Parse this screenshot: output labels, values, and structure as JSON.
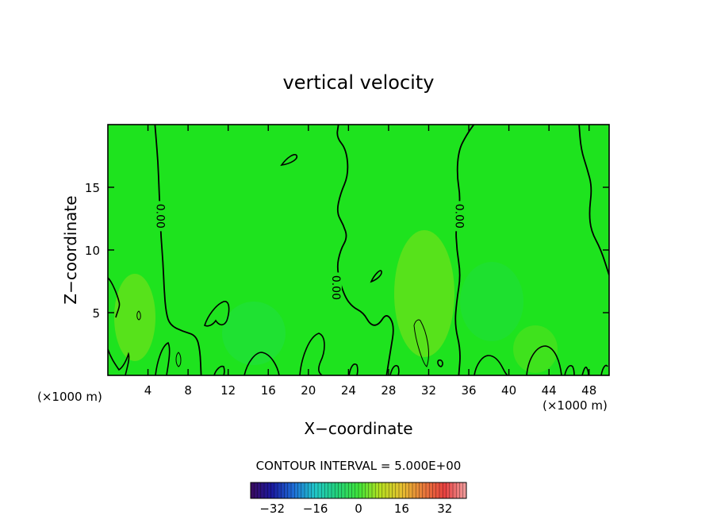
{
  "chart_data": {
    "type": "heatmap",
    "title": "vertical velocity",
    "xlabel": "X−coordinate",
    "ylabel": "Z−coordinate",
    "x_unit_label": "(×1000 m)",
    "z_unit_label": "(×1000 m)",
    "xlim": [
      0,
      50
    ],
    "ylim": [
      0,
      20
    ],
    "x_ticks": [
      4,
      8,
      12,
      16,
      20,
      24,
      28,
      32,
      36,
      40,
      44,
      48
    ],
    "x_tick_labels": [
      "4",
      "8",
      "12",
      "16",
      "20",
      "24",
      "28",
      "32",
      "36",
      "40",
      "44",
      "48"
    ],
    "y_ticks": [
      5,
      10,
      15
    ],
    "y_tick_labels": [
      "5",
      "10",
      "15"
    ],
    "contour_interval_text": "CONTOUR INTERVAL = 5.000E+00",
    "contour_labels": [
      {
        "text": "0.00",
        "x": 5.2,
        "z": 12.7
      },
      {
        "text": "0.00",
        "x": 22.7,
        "z": 7.0
      },
      {
        "text": "0.00",
        "x": 35.0,
        "z": 12.7
      }
    ],
    "zero_contours": [
      {
        "name": "zero-contour-left",
        "points": [
          [
            4.7,
            20
          ],
          [
            4.8,
            19
          ],
          [
            5.0,
            17
          ],
          [
            5.1,
            15
          ],
          [
            5.2,
            13
          ],
          [
            5.3,
            11
          ],
          [
            5.5,
            9
          ],
          [
            5.6,
            7
          ],
          [
            5.8,
            5
          ],
          [
            6.2,
            4
          ],
          [
            7.5,
            3.5
          ],
          [
            8.8,
            3.2
          ],
          [
            9.2,
            2
          ],
          [
            9.3,
            0
          ]
        ]
      },
      {
        "name": "zero-contour-middle",
        "points": [
          [
            23.0,
            20
          ],
          [
            22.8,
            19
          ],
          [
            23.8,
            18
          ],
          [
            24.0,
            16
          ],
          [
            23.2,
            14.5
          ],
          [
            22.8,
            13
          ],
          [
            23.5,
            12
          ],
          [
            23.9,
            11
          ],
          [
            23.2,
            10
          ],
          [
            22.8,
            8.5
          ],
          [
            23.5,
            6.5
          ],
          [
            24.3,
            5.5
          ],
          [
            25.5,
            5
          ],
          [
            26.2,
            4
          ],
          [
            27.0,
            4
          ],
          [
            27.8,
            5
          ],
          [
            28.6,
            4
          ],
          [
            28.2,
            2
          ],
          [
            27.8,
            0
          ]
        ]
      },
      {
        "name": "zero-contour-right",
        "points": [
          [
            36.5,
            20
          ],
          [
            35.8,
            19.2
          ],
          [
            35.0,
            18
          ],
          [
            34.8,
            16
          ],
          [
            35.2,
            14
          ],
          [
            34.7,
            12
          ],
          [
            34.8,
            10
          ],
          [
            35.2,
            8
          ],
          [
            34.8,
            6
          ],
          [
            34.6,
            4
          ],
          [
            35.2,
            2
          ],
          [
            35.0,
            0
          ]
        ]
      },
      {
        "name": "zero-contour-far-right",
        "points": [
          [
            47.0,
            20
          ],
          [
            47.2,
            18
          ],
          [
            47.8,
            16.5
          ],
          [
            48.3,
            15
          ],
          [
            48.0,
            13
          ],
          [
            48.2,
            11.5
          ],
          [
            49.2,
            10
          ],
          [
            50,
            8
          ]
        ]
      }
    ],
    "colorbar": {
      "range": [
        -40,
        40
      ],
      "ticks": [
        -32,
        -16,
        0,
        16,
        32
      ],
      "tick_labels": [
        "−32",
        "−16",
        "0",
        "16",
        "32"
      ],
      "colors": [
        "#3a0a5e",
        "#1a1aa0",
        "#1e6fd8",
        "#20c8c8",
        "#22d27a",
        "#3fe43a",
        "#b6e020",
        "#e6c030",
        "#e87a3a",
        "#e84040",
        "#f0a0a0"
      ]
    },
    "field_color": "#1ee31e",
    "contour_color": "#000000"
  }
}
